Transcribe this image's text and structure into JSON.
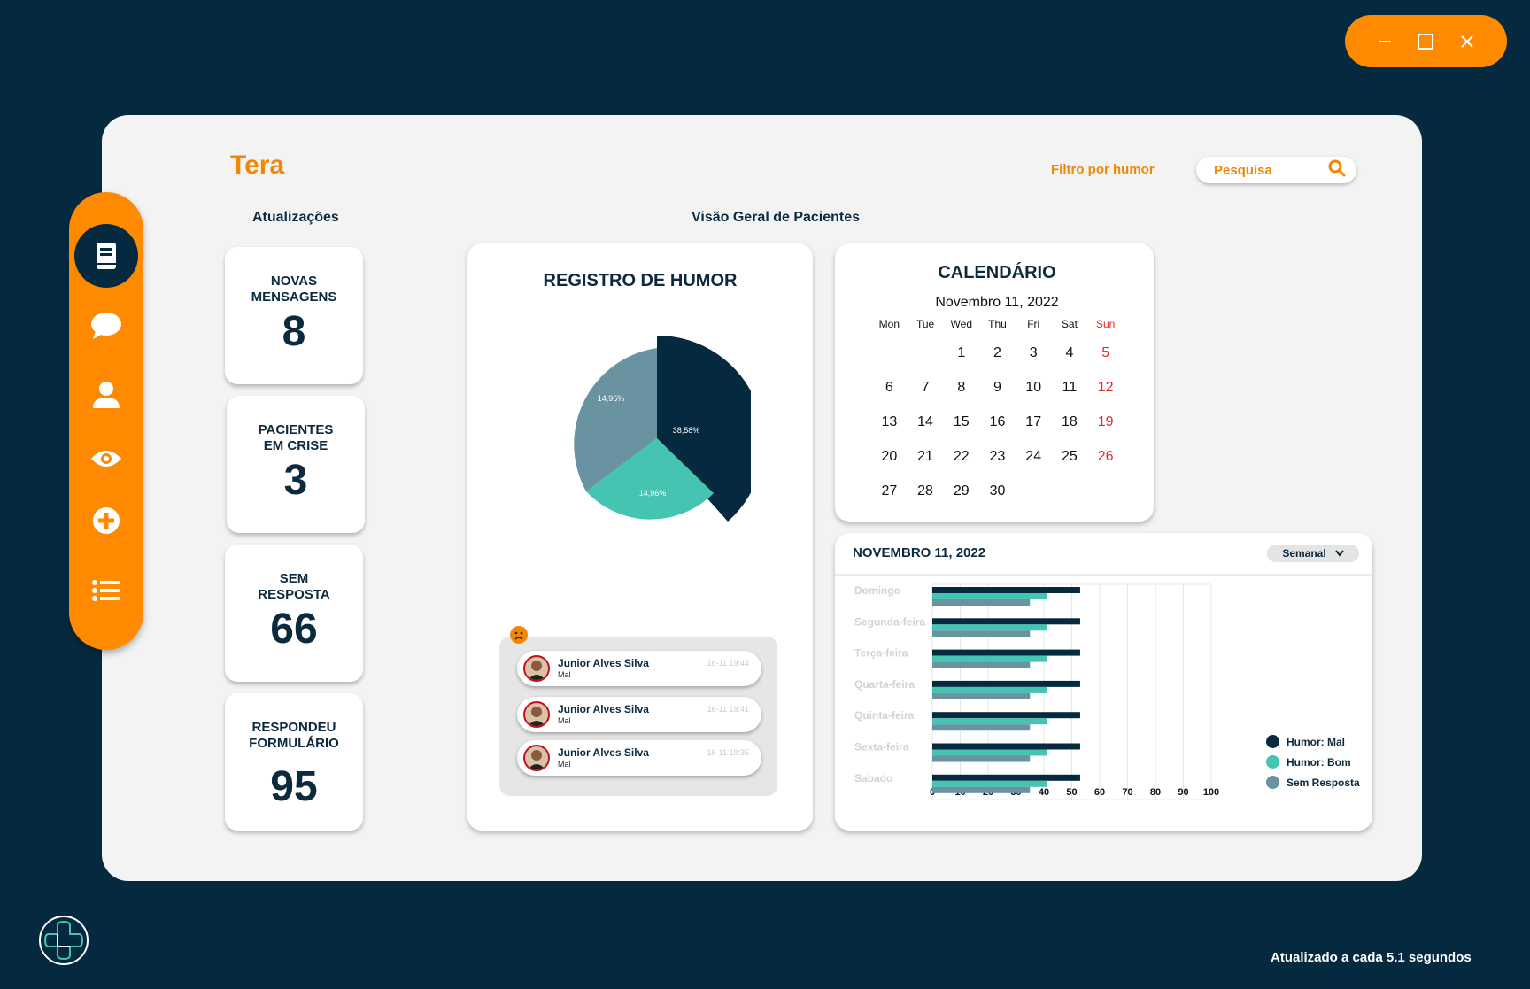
{
  "app": {
    "title": "Tera"
  },
  "header": {
    "filter_label": "Filtro por humor",
    "search_placeholder": "Pesquisa"
  },
  "sections": {
    "updates": "Atualizações",
    "overview": "Visão Geral de Pacientes"
  },
  "sidebar": {
    "items": [
      {
        "icon": "book-icon",
        "active": true
      },
      {
        "icon": "chat-icon",
        "active": false
      },
      {
        "icon": "user-icon",
        "active": false
      },
      {
        "icon": "eye-icon",
        "active": false
      },
      {
        "icon": "plus-circle-icon",
        "active": false
      },
      {
        "icon": "list-icon",
        "active": false
      }
    ]
  },
  "stats": [
    {
      "label_line1": "NOVAS",
      "label_line2": "MENSAGENS",
      "value": "8"
    },
    {
      "label_line1": "PACIENTES",
      "label_line2": "EM CRISE",
      "value": "3"
    },
    {
      "label_line1": "SEM",
      "label_line2": "RESPOSTA",
      "value": "66"
    },
    {
      "label_line1": "RESPONDEU",
      "label_line2": "FORMULÁRIO",
      "value": "95"
    }
  ],
  "mood_record": {
    "title": "REGISTRO DE HUMOR",
    "slices": [
      {
        "label": "38,58%",
        "color": "#052a40"
      },
      {
        "label": "14,96%",
        "color": "#44c4b1"
      },
      {
        "label": "14,96%",
        "color": "#6a93a1"
      }
    ]
  },
  "alerts": [
    {
      "name": "Junior Alves Silva",
      "mood": "Mal",
      "time": "16-11 19:44"
    },
    {
      "name": "Junior Alves Silva",
      "mood": "Mal",
      "time": "16-11 19:41"
    },
    {
      "name": "Junior Alves Silva",
      "mood": "Mal",
      "time": "16-11 19:35"
    }
  ],
  "calendar": {
    "title": "CALENDÁRIO",
    "month_label": "Novembro 11, 2022",
    "weekdays": [
      "Mon",
      "Tue",
      "Wed",
      "Thu",
      "Fri",
      "Sat",
      "Sun"
    ],
    "weeks": [
      [
        "",
        "",
        "1",
        "2",
        "3",
        "4",
        "5"
      ],
      [
        "6",
        "7",
        "8",
        "9",
        "10",
        "11",
        "12"
      ],
      [
        "13",
        "14",
        "15",
        "16",
        "17",
        "18",
        "19"
      ],
      [
        "20",
        "21",
        "22",
        "23",
        "24",
        "25",
        "26"
      ],
      [
        "27",
        "28",
        "29",
        "30",
        "",
        "",
        ""
      ]
    ]
  },
  "weekly_chart": {
    "date_label": "NOVEMBRO 11, 2022",
    "period": "Semanal"
  },
  "chart_data": {
    "type": "bar",
    "orientation": "horizontal",
    "categories": [
      "Domingo",
      "Segunda-feira",
      "Terça-feira",
      "Quarta-feira",
      "Quinta-feira",
      "Sexta-feira",
      "Sabado"
    ],
    "series": [
      {
        "name": "Humor: Mal",
        "color": "#052a40",
        "values": [
          53,
          53,
          53,
          53,
          53,
          53,
          53
        ]
      },
      {
        "name": "Humor: Bom",
        "color": "#44c4b1",
        "values": [
          41,
          41,
          41,
          41,
          41,
          41,
          41
        ]
      },
      {
        "name": "Sem  Resposta",
        "color": "#6a93a1",
        "values": [
          35,
          35,
          35,
          35,
          35,
          35,
          35
        ]
      }
    ],
    "xticks": [
      "0",
      "10",
      "20",
      "30",
      "40",
      "50",
      "60",
      "70",
      "80",
      "90",
      "100"
    ],
    "xlim": [
      0,
      100
    ],
    "grid": true,
    "legend": "right"
  },
  "footer": {
    "refresh_text": "Atualizado a cada 5.1 segundos"
  }
}
